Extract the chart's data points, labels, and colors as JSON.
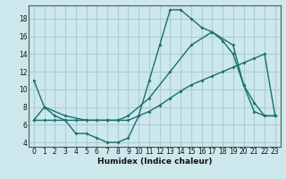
{
  "xlabel": "Humidex (Indice chaleur)",
  "ylabel": "",
  "background_color": "#cce8ec",
  "grid_color": "#aacdd4",
  "line_color": "#1a6e6e",
  "xlim": [
    -0.5,
    23.5
  ],
  "ylim": [
    3.5,
    19.5
  ],
  "xticks": [
    0,
    1,
    2,
    3,
    4,
    5,
    6,
    7,
    8,
    9,
    10,
    11,
    12,
    13,
    14,
    15,
    16,
    17,
    18,
    19,
    20,
    21,
    22,
    23
  ],
  "yticks": [
    4,
    6,
    8,
    10,
    12,
    14,
    16,
    18
  ],
  "line1_x": [
    0,
    1,
    2,
    3,
    4,
    5,
    6,
    7,
    8,
    9,
    10,
    11,
    12,
    13,
    14,
    15,
    16,
    17,
    18,
    19,
    20,
    21,
    22,
    23
  ],
  "line1_y": [
    11,
    8,
    7,
    6.5,
    5,
    5,
    4.5,
    4,
    4,
    4.5,
    7,
    11,
    15,
    19,
    19,
    18,
    17,
    16.5,
    15.5,
    14,
    10.5,
    8.5,
    7,
    7
  ],
  "line2_x": [
    0,
    1,
    2,
    3,
    4,
    5,
    6,
    7,
    8,
    9,
    10,
    11,
    12,
    13,
    14,
    15,
    16,
    17,
    18,
    19,
    20,
    21,
    22,
    23
  ],
  "line2_y": [
    6.5,
    6.5,
    6.5,
    6.5,
    6.5,
    6.5,
    6.5,
    6.5,
    6.5,
    6.5,
    7.0,
    7.5,
    8.2,
    9.0,
    9.8,
    10.5,
    11.0,
    11.5,
    12.0,
    12.5,
    13.0,
    13.5,
    14.0,
    7.0
  ],
  "line3_x": [
    0,
    1,
    3,
    5,
    7,
    8,
    9,
    11,
    13,
    15,
    17,
    19,
    20,
    21,
    22,
    23
  ],
  "line3_y": [
    6.5,
    8.0,
    7.0,
    6.5,
    6.5,
    6.5,
    7.0,
    9.0,
    12.0,
    15.0,
    16.5,
    15.0,
    10.5,
    7.5,
    7.0,
    7.0
  ]
}
